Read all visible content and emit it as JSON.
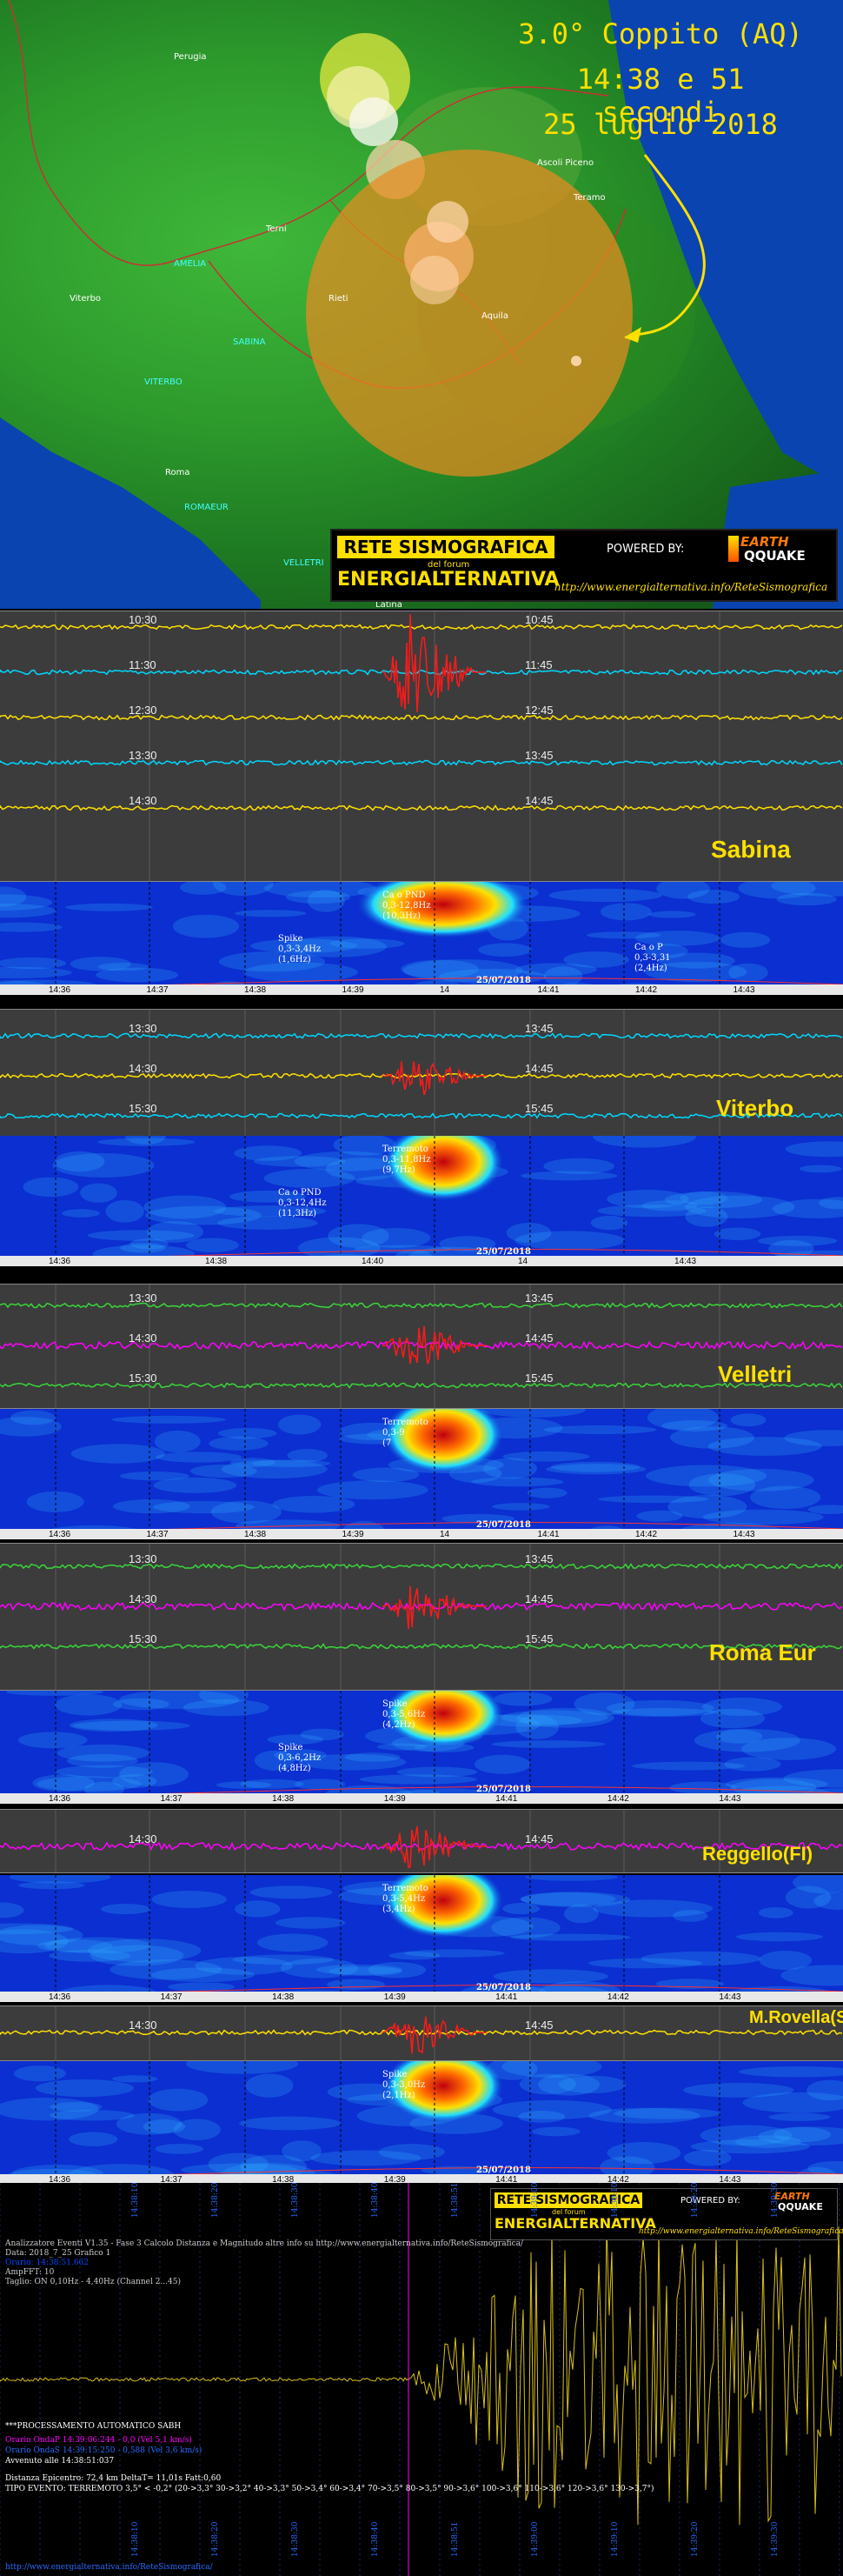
{
  "map": {
    "title_line1": "3.0° Coppito (AQ)",
    "title_line2": "14:38 e 51 secondi",
    "title_line3": "25 luglio 2018",
    "cities": [
      {
        "name": "Perugia",
        "c": "w"
      },
      {
        "name": "Ascoli Piceno",
        "c": "w"
      },
      {
        "name": "Teramo",
        "c": "w"
      },
      {
        "name": "Terni",
        "c": "w"
      },
      {
        "name": "AMELIA",
        "c": "c"
      },
      {
        "name": "Viterbo",
        "c": "w"
      },
      {
        "name": "Rieti",
        "c": "w"
      },
      {
        "name": "Aquila",
        "c": "w"
      },
      {
        "name": "SABINA",
        "c": "c"
      },
      {
        "name": "VITERBO",
        "c": "c"
      },
      {
        "name": "Roma",
        "c": "w"
      },
      {
        "name": "ROMAEUR",
        "c": "c"
      },
      {
        "name": "VELLETRI",
        "c": "c"
      },
      {
        "name": "Latina",
        "c": "w"
      }
    ],
    "banner": {
      "title": "RETE SISMOGRAFICA",
      "subtitle": "del forum",
      "brand": "ENERGIALTERNATIVA",
      "powered": "POWERED BY:",
      "logo_line1": "EARTH",
      "logo_line2": "QQUAKE",
      "url": "http://www.energialternativa.info/ReteSismografica"
    }
  },
  "stations": [
    {
      "name": "Sabina",
      "left_times": [
        "10:30",
        "11:30",
        "12:30",
        "13:30",
        "14:30"
      ],
      "right_times": [
        "10:45",
        "11:45",
        "12:45",
        "13:45",
        "14:45"
      ],
      "trace_colors": [
        "#ffe000",
        "#00d8ff",
        "#ffe000",
        "#00d8ff",
        "#ffe000"
      ],
      "spec_notes": [
        "Ca o PND",
        "0,3-12,8Hz",
        "(10,3Hz)",
        "Spike",
        "0,3-3,4Hz",
        "(1,6Hz)",
        "Ca o P",
        "0,3-3,31",
        "(2,4Hz)"
      ],
      "date": "25/07/2018",
      "xticks": [
        "14:36",
        "14:37",
        "14:38",
        "14:39",
        "14",
        "14:41",
        "14:42",
        "14:43"
      ]
    },
    {
      "name": "Viterbo",
      "left_times": [
        "13:30",
        "14:30",
        "15:30"
      ],
      "right_times": [
        "13:45",
        "14:45",
        "15:45"
      ],
      "trace_colors": [
        "#00d8ff",
        "#ffe000",
        "#00d8ff"
      ],
      "spec_notes": [
        "Terremoto",
        "0,3-11,8Hz",
        "(9,7Hz)",
        "Ca o PND",
        "0,3-12,4Hz",
        "(11,3Hz)"
      ],
      "date": "25/07/2018",
      "xticks": [
        "14:36",
        "14:38",
        "14:40",
        "14",
        "14:43"
      ]
    },
    {
      "name": "Velletri",
      "left_times": [
        "13:30",
        "14:30",
        "15:30"
      ],
      "right_times": [
        "13:45",
        "14:45",
        "15:45"
      ],
      "trace_colors": [
        "#39d639",
        "#ff00ff",
        "#39d639"
      ],
      "spec_notes": [
        "Terremoto",
        "0,3-9",
        "(7"
      ],
      "date": "25/07/2018",
      "xticks": [
        "14:36",
        "14:37",
        "14:38",
        "14:39",
        "14",
        "14:41",
        "14:42",
        "14:43"
      ]
    },
    {
      "name": "Roma Eur",
      "left_times": [
        "13:30",
        "14:30",
        "15:30"
      ],
      "right_times": [
        "13:45",
        "14:45",
        "15:45"
      ],
      "trace_colors": [
        "#39d639",
        "#ff00ff",
        "#39d639"
      ],
      "spec_notes": [
        "Spike",
        "0,3-5,6Hz",
        "(4,2Hz)",
        "Spike",
        "0,3-6,2Hz",
        "(4,8Hz)"
      ],
      "date": "25/07/2018",
      "xticks": [
        "14:36",
        "14:37",
        "14:38",
        "14:39",
        "14:41",
        "14:42",
        "14:43"
      ]
    },
    {
      "name": "Reggello(FI)",
      "left_times": [
        "14:30"
      ],
      "right_times": [
        "14:45"
      ],
      "trace_colors": [
        "#ff00ff"
      ],
      "spec_notes": [
        "Terremoto",
        "0,3-5,4Hz",
        "(3,4Hz)"
      ],
      "date": "25/07/2018",
      "xticks": [
        "14:36",
        "14:37",
        "14:38",
        "14:39",
        "14:41",
        "14:42",
        "14:43"
      ]
    },
    {
      "name": "M.Rovella(SA)",
      "left_times": [
        "14:30"
      ],
      "right_times": [
        "14:45"
      ],
      "trace_colors": [
        "#ffe000"
      ],
      "spec_notes": [
        "Spike",
        "0,3-3,0Hz",
        "(2,1Hz)"
      ],
      "date": "25/07/2018",
      "xticks": [
        "14:36",
        "14:37",
        "14:38",
        "14:39",
        "14:41",
        "14:42",
        "14:43"
      ]
    }
  ],
  "bottom": {
    "header_line1": "Analizzatore Eventi V1.35 - Fase 3 Calcolo Distanza e Magnitudo altre info su http://www.energialternativa.info/ReteSismografica/",
    "header_line2": "Data: 2018_7_25 Grafico 1",
    "header_line3": "Orario: 14:38:51.662",
    "header_line4": "AmpFFT: 10",
    "header_line5": "Taglio: ON 0,10Hz - 4,40Hz     (Channel 2...45)",
    "proc": "***PROCESSAMENTO AUTOMATICO SABH",
    "onda1": "Orario OndaP 14:39:06:244 - 0,0 (Vel 5,1 km/s)",
    "onda2": "Orario OndaS 14:39:15:250 - 0,588 (Vel 3,6 km/s)",
    "avviso": "Avvenuto alle 14:38:51:037",
    "dist": "Distanza Epicentro: 72,4 km DeltaT= 11,01s   Fatt:0,60",
    "tipo": "TIPO EVENTO: TERREMOTO 3,5° < -0,2° (20->3,3° 30->3,2° 40->3,3° 50->3,4° 60->3,4° 70->3,5° 80->3,5° 90->3,6° 100->3,6° 110->3,6° 120->3,6° 130->3,7°)",
    "footer_url": "http://www.energialternativa.info/ReteSismografica/",
    "top_labels": [
      "14:38:10",
      "14:38:20",
      "14:38:30",
      "14:38:40",
      "14:38:51",
      "14:39:00",
      "14:39:10",
      "14:39:20",
      "14:39:30"
    ],
    "bottom_labels": [
      "14:38:10",
      "14:38:20",
      "14:38:30",
      "14:38:40",
      "14:38:51",
      "14:39:00",
      "14:39:10",
      "14:39:20",
      "14:39:30"
    ],
    "banner_title": "RETE SISMOGRAFICA",
    "banner_subtitle": "del forum",
    "banner_brand": "ENERGIALTERNATIVA",
    "banner_powered": "POWERED BY:",
    "banner_logo1": "EARTH",
    "banner_logo2": "QQUAKE",
    "banner_url": "http://www.energialternativa.info/ReteSismografica/"
  }
}
